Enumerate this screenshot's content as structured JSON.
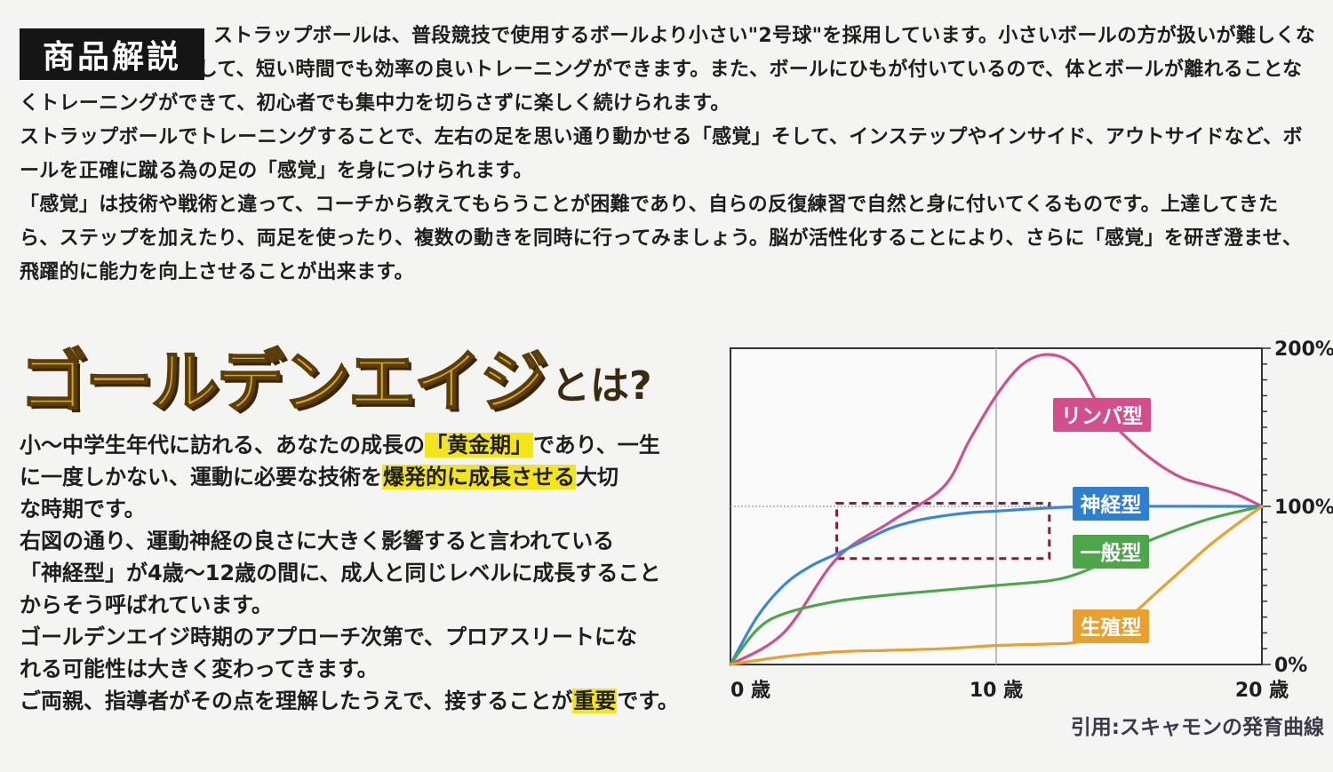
{
  "description": {
    "tag": "商品解説",
    "para1": "ストラップボールは、普段競技で使用するボールより小さい\"2号球\"を採用しています。小さいボールの方が扱いが難しくなるため、集中力が増して、短い時間でも効率の良いトレーニングができます。また、ボールにひもが付いているので、体とボールが離れることなくトレーニングができて、初心者でも集中力を切らさずに楽しく続けられます。",
    "para2": "ストラップボールでトレーニングすることで、左右の足を思い通り動かせる「感覚」そして、インステップやインサイド、アウトサイドなど、ボールを正確に蹴る為の足の「感覚」を身につけられます。",
    "para3": "「感覚」は技術や戦術と違って、コーチから教えてもらうことが困難であり、自らの反復練習で自然と身に付いてくるものです。上達してきたら、ステップを加えたり、両足を使ったり、複数の動きを同時に行ってみましょう。脳が活性化することにより、さらに「感覚」を研ぎ澄ませ、飛躍的に能力を向上させることが出来ます。"
  },
  "golden": {
    "title_main": "ゴールデンエイジ",
    "title_suffix": "とは?",
    "l1a": "小〜中学生年代に訪れる、あなたの成長の",
    "l1h": "「黄金期」",
    "l1b": "であり、一生",
    "l2a": "に一度しかない、運動に必要な技術を",
    "l2h": "爆発的に成長させる",
    "l2b": "大切",
    "l3": "な時期です。",
    "l4": "右図の通り、運動神経の良さに大きく影響すると言われている",
    "l5": "「神経型」が4歳〜12歳の間に、成人と同じレベルに成長すること",
    "l6": "からそう呼ばれています。",
    "l7": "ゴールデンエイジ時期のアプローチ次第で、プロアスリートにな",
    "l8": "れる可能性は大きく変わってきます。",
    "l9a": "ご両親、指導者がその点を理解したうえで、接することが",
    "l9h": "重要",
    "l9b": "です。"
  },
  "chart_data": {
    "type": "line",
    "xlim": [
      0,
      20
    ],
    "ylim": [
      0,
      200
    ],
    "x_ticks": [
      "0 歳",
      "10 歳",
      "20 歳"
    ],
    "y_ticks": [
      "0%",
      "100%",
      "200%"
    ],
    "grid": "major gridlines at x=10 and y=100",
    "source": "引用:スキャモンの発育曲線",
    "highlight_box": {
      "x_range": [
        4,
        12
      ],
      "y_range": [
        67,
        102
      ]
    },
    "series": [
      {
        "name": "リンパ型",
        "color": "#d24f8e",
        "label_bg": "#d24f8e",
        "points": [
          [
            0,
            0
          ],
          [
            2,
            20
          ],
          [
            4,
            67
          ],
          [
            6,
            90
          ],
          [
            8,
            112
          ],
          [
            9,
            142
          ],
          [
            10,
            170
          ],
          [
            11,
            190
          ],
          [
            12,
            196
          ],
          [
            13,
            188
          ],
          [
            14,
            160
          ],
          [
            15,
            142
          ],
          [
            16,
            128
          ],
          [
            17,
            118
          ],
          [
            18,
            113
          ],
          [
            19,
            108
          ],
          [
            20,
            100
          ]
        ]
      },
      {
        "name": "神経型",
        "color": "#3a86d9",
        "label_bg": "#2f7fd0",
        "points": [
          [
            0,
            0
          ],
          [
            1,
            30
          ],
          [
            2,
            50
          ],
          [
            3,
            62
          ],
          [
            4,
            70
          ],
          [
            5,
            78
          ],
          [
            6,
            86
          ],
          [
            7,
            91
          ],
          [
            8,
            94
          ],
          [
            9,
            96
          ],
          [
            10,
            97
          ],
          [
            12,
            99
          ],
          [
            14,
            100
          ],
          [
            20,
            100
          ]
        ]
      },
      {
        "name": "一般型",
        "color": "#4ea64a",
        "label_bg": "#4ea64a",
        "points": [
          [
            0,
            0
          ],
          [
            1,
            22
          ],
          [
            2,
            32
          ],
          [
            4,
            40
          ],
          [
            6,
            44
          ],
          [
            8,
            47
          ],
          [
            10,
            50
          ],
          [
            12,
            53
          ],
          [
            13,
            57
          ],
          [
            14,
            64
          ],
          [
            15,
            72
          ],
          [
            16,
            80
          ],
          [
            18,
            92
          ],
          [
            20,
            100
          ]
        ]
      },
      {
        "name": "生殖型",
        "color": "#e8a030",
        "label_bg": "#e8a030",
        "points": [
          [
            0,
            0
          ],
          [
            2,
            5
          ],
          [
            4,
            8
          ],
          [
            6,
            9
          ],
          [
            8,
            10
          ],
          [
            10,
            12
          ],
          [
            12,
            13
          ],
          [
            13,
            14
          ],
          [
            14,
            20
          ],
          [
            15,
            30
          ],
          [
            16,
            45
          ],
          [
            17,
            60
          ],
          [
            18,
            75
          ],
          [
            19,
            88
          ],
          [
            20,
            100
          ]
        ]
      }
    ]
  }
}
